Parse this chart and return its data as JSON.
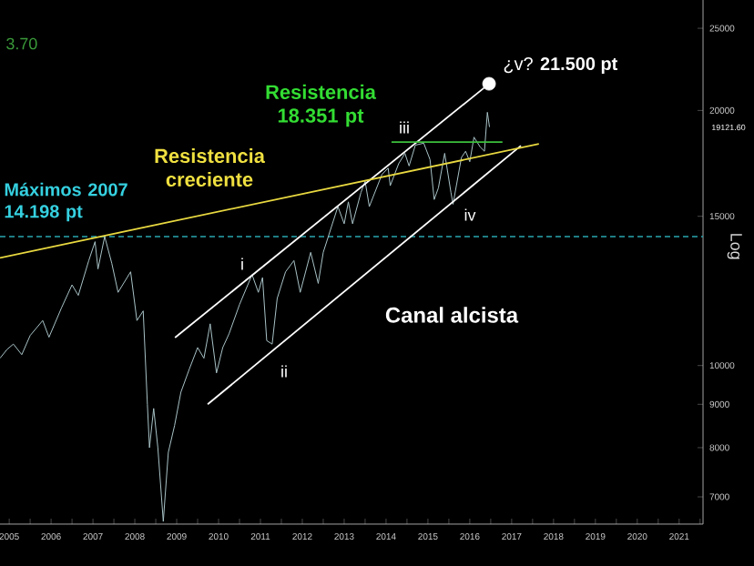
{
  "chart_data": {
    "type": "line",
    "marker": "none",
    "xlim": [
      2005.28,
      2022.07
    ],
    "ylim": [
      6500,
      27000
    ],
    "log": "y",
    "ylabel": "Log",
    "xticks": [
      {
        "value": 2005.5,
        "label": "2005"
      },
      {
        "value": 2006,
        "label": null
      },
      {
        "value": 2006.5,
        "label": "2006"
      },
      {
        "value": 2007,
        "label": null
      },
      {
        "value": 2007.5,
        "label": "2007"
      },
      {
        "value": 2008,
        "label": null
      },
      {
        "value": 2008.5,
        "label": "2008"
      },
      {
        "value": 2009,
        "label": null
      },
      {
        "value": 2009.5,
        "label": "2009"
      },
      {
        "value": 2010,
        "label": null
      },
      {
        "value": 2010.5,
        "label": "2010"
      },
      {
        "value": 2011,
        "label": null
      },
      {
        "value": 2011.5,
        "label": "2011"
      },
      {
        "value": 2012,
        "label": null
      },
      {
        "value": 2012.5,
        "label": "2012"
      },
      {
        "value": 2013,
        "label": null
      },
      {
        "value": 2013.5,
        "label": "2013"
      },
      {
        "value": 2014,
        "label": null
      },
      {
        "value": 2014.5,
        "label": "2014"
      },
      {
        "value": 2015,
        "label": null
      },
      {
        "value": 2015.5,
        "label": "2015"
      },
      {
        "value": 2016,
        "label": null
      },
      {
        "value": 2016.5,
        "label": "2016"
      },
      {
        "value": 2017,
        "label": null
      },
      {
        "value": 2017.5,
        "label": "2017"
      },
      {
        "value": 2018,
        "label": null
      },
      {
        "value": 2018.5,
        "label": "2018"
      },
      {
        "value": 2019,
        "label": null
      },
      {
        "value": 2019.5,
        "label": "2019"
      },
      {
        "value": 2020,
        "label": null
      },
      {
        "value": 2020.5,
        "label": "2020"
      },
      {
        "value": 2021,
        "label": null
      },
      {
        "value": 2021.5,
        "label": "2021"
      },
      {
        "value": 2022,
        "label": null
      }
    ],
    "yticks": [
      7000,
      8000,
      9000,
      10000,
      15000,
      20000,
      25000
    ],
    "series": [
      {
        "color": "#a9c3c7",
        "x": [
          2005.28,
          2005.45,
          2005.6,
          2005.8,
          2006.0,
          2006.3,
          2006.45,
          2006.75,
          2007.0,
          2007.15,
          2007.4,
          2007.55,
          2007.62,
          2007.78,
          2007.95,
          2008.1,
          2008.4,
          2008.55,
          2008.7,
          2008.8,
          2008.85,
          2008.95,
          2009.05,
          2009.18,
          2009.3,
          2009.45,
          2009.6,
          2009.8,
          2010.0,
          2010.15,
          2010.3,
          2010.45,
          2010.6,
          2010.75,
          2011.0,
          2011.3,
          2011.45,
          2011.55,
          2011.65,
          2011.78,
          2011.9,
          2012.1,
          2012.3,
          2012.45,
          2012.7,
          2012.88,
          2013.0,
          2013.35,
          2013.5,
          2013.6,
          2013.7,
          2013.9,
          2014.0,
          2014.1,
          2014.4,
          2014.55,
          2014.6,
          2014.8,
          2014.95,
          2015.05,
          2015.2,
          2015.4,
          2015.55,
          2015.65,
          2015.75,
          2015.9,
          2016.05,
          2016.1,
          2016.3,
          2016.4,
          2016.5,
          2016.6,
          2016.75,
          2016.85,
          2016.92,
          2016.97
        ],
        "values": [
          10200,
          10450,
          10600,
          10300,
          10850,
          11300,
          10800,
          11700,
          12450,
          12100,
          13300,
          14000,
          13000,
          14198,
          13200,
          12200,
          12900,
          11300,
          11600,
          9000,
          8000,
          8900,
          8000,
          6547,
          7900,
          8500,
          9300,
          9900,
          10500,
          10200,
          11200,
          9800,
          10500,
          10900,
          11800,
          12800,
          12200,
          12700,
          10700,
          10600,
          12000,
          12900,
          13300,
          12200,
          13600,
          12500,
          13600,
          15400,
          14700,
          15600,
          14700,
          16000,
          16500,
          15400,
          16800,
          17100,
          16300,
          17300,
          17800,
          17200,
          18200,
          18300,
          17500,
          15700,
          16200,
          17800,
          16000,
          15500,
          17600,
          17900,
          17400,
          18600,
          18100,
          17900,
          19900,
          19121.6
        ]
      },
      {
        "color": "#ffffff",
        "x": [
          2009.46,
          2016.96
        ],
        "values": [
          10790,
          21500
        ]
      },
      {
        "color": "#ffffff",
        "x": [
          2010.24,
          2017.72
        ],
        "values": [
          9000,
          18170
        ]
      },
      {
        "color": "#e8d840",
        "x": [
          2005.28,
          2018.15
        ],
        "values": [
          13400,
          18260
        ]
      },
      {
        "color": "#3cbf3c",
        "x": [
          2014.63,
          2017.28
        ],
        "values": [
          18351,
          18351
        ]
      },
      {
        "type": "scatter",
        "marker": "circle",
        "color": "#ffffff",
        "x": [
          2016.96
        ],
        "values": [
          21500
        ]
      }
    ],
    "ref_lines": [
      {
        "axis": "y",
        "value": 14198,
        "color": "#2aa6b0",
        "line_style": "dashed"
      }
    ],
    "annotations": [
      "3.70",
      "Máximos 2007 14.198 pt",
      "Resistencia creciente",
      "Resistencia 18.351 pt",
      "¿v? **21.500 pt**",
      "i",
      "ii",
      "iii",
      "iv",
      "Canal alcista",
      "19121.60"
    ]
  }
}
